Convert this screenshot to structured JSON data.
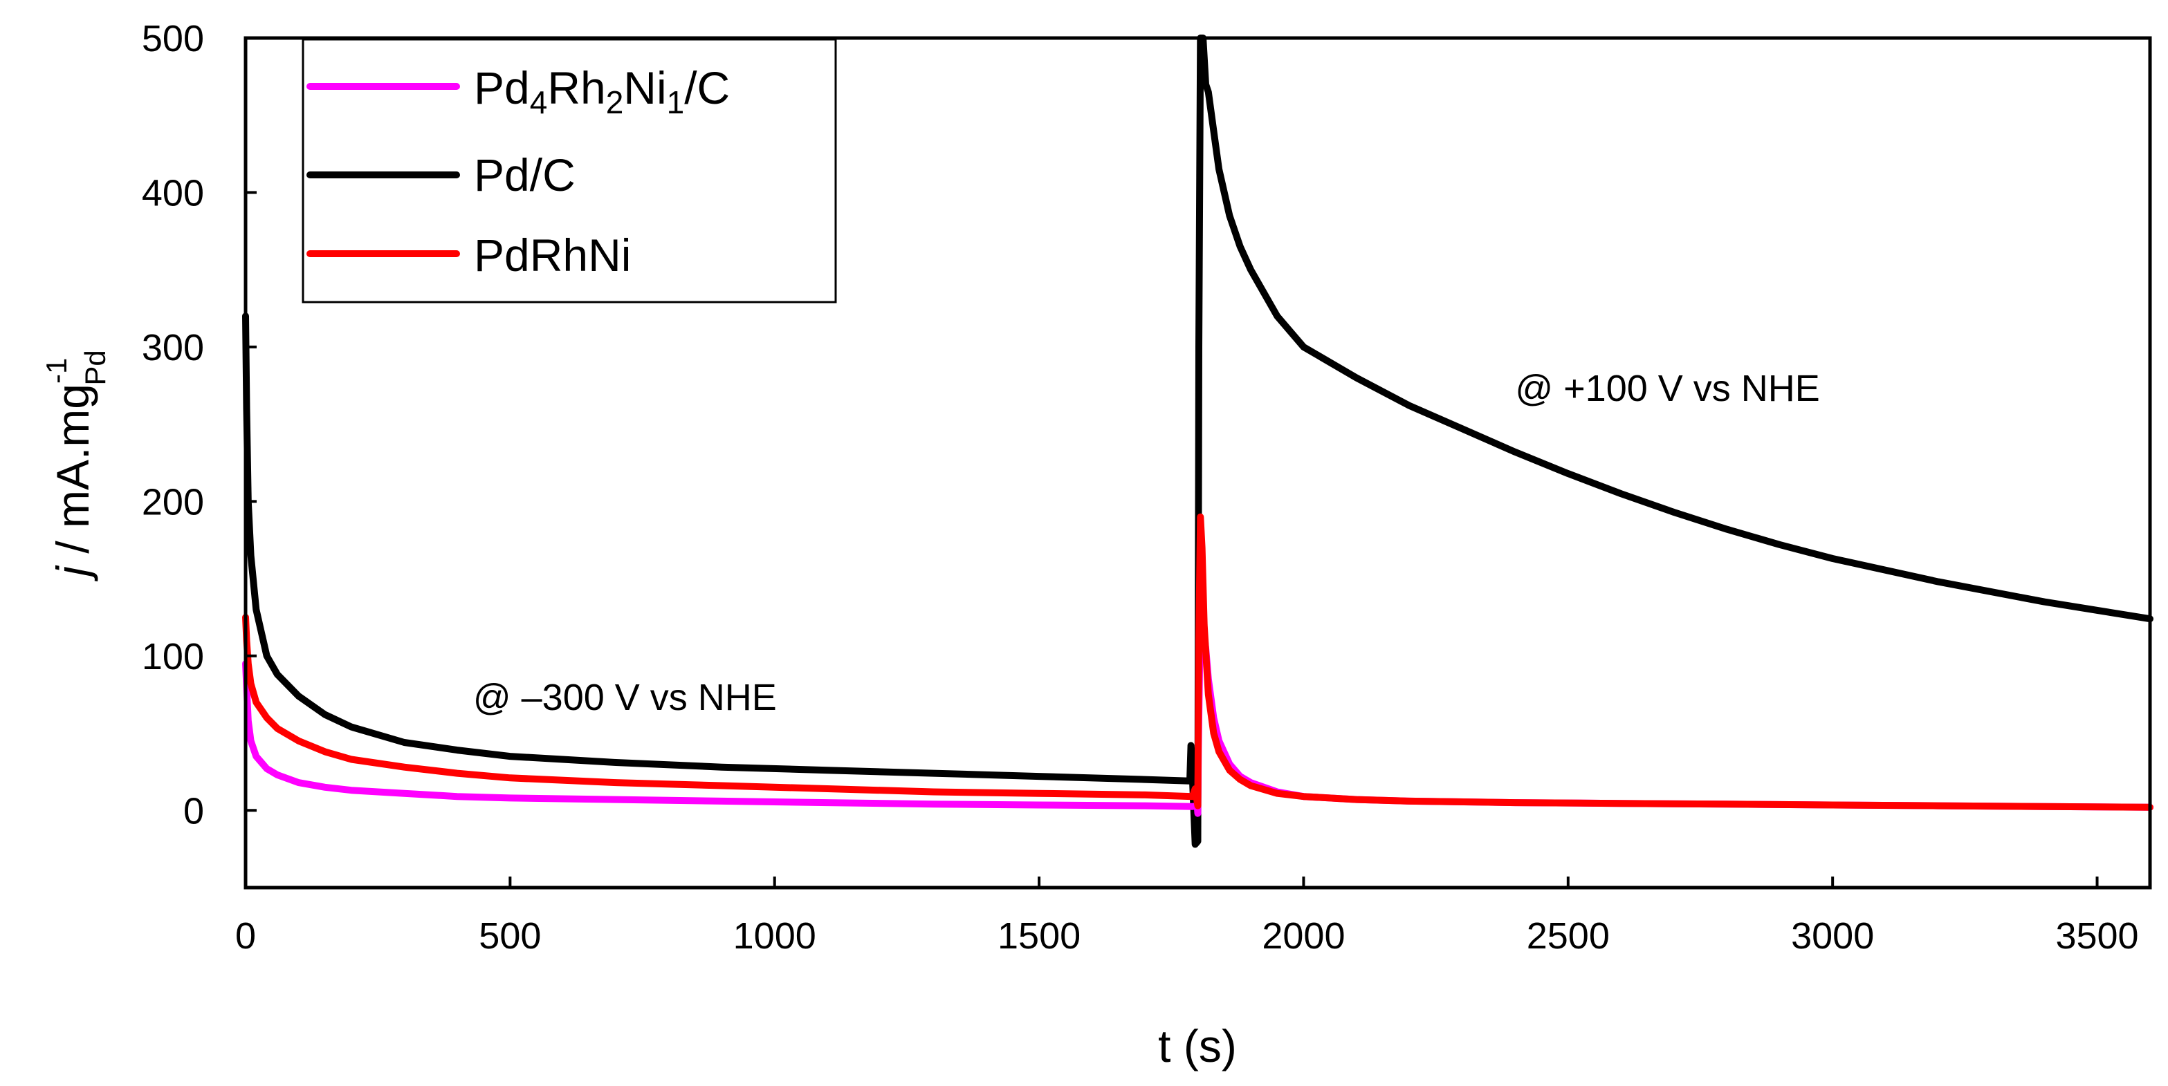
{
  "chart_data": {
    "type": "line",
    "title": "",
    "xlabel": "t (s)",
    "ylabel": {
      "italic": "j",
      "text": " / mA.mg",
      "superscript": "-1",
      "subscript": "Pd"
    },
    "xlim": [
      0,
      3600
    ],
    "ylim": [
      -50,
      500
    ],
    "xticks": [
      0,
      500,
      1000,
      1500,
      2000,
      2500,
      3000,
      3500
    ],
    "yticks": [
      0,
      100,
      200,
      300,
      400,
      500
    ],
    "grid": false,
    "legend_position": "top-left",
    "annotations": [
      {
        "text": "@ –300 V vs NHE",
        "x": 430,
        "y": 65
      },
      {
        "text": "@ +100 V vs NHE",
        "x": 2400,
        "y": 265
      }
    ],
    "series": [
      {
        "name": "Pd4Rh2Ni1/C",
        "legend": {
          "p1": "Pd",
          "s1": "4",
          "p2": "Rh",
          "s2": "2",
          "p3": "Ni",
          "s3": "1",
          "p4": "/C"
        },
        "color": "#ff00ff",
        "x": [
          0,
          2,
          5,
          10,
          20,
          40,
          60,
          100,
          150,
          200,
          300,
          400,
          500,
          700,
          900,
          1100,
          1300,
          1500,
          1700,
          1790,
          1799,
          1800,
          1801,
          1805,
          1810,
          1815,
          1820,
          1830,
          1840,
          1860,
          1880,
          1900,
          1950,
          2000,
          2100,
          2200,
          2400,
          2600,
          2800,
          3000,
          3200,
          3400,
          3600
        ],
        "y": [
          95,
          80,
          58,
          45,
          35,
          27,
          23,
          18,
          15,
          13,
          11,
          9,
          8,
          7,
          6,
          5,
          4,
          3.5,
          3,
          2.5,
          3,
          -2,
          40,
          130,
          120,
          105,
          85,
          60,
          45,
          30,
          22,
          18,
          12,
          9,
          7,
          6,
          5,
          4.5,
          4,
          3.5,
          3,
          2.5,
          2
        ]
      },
      {
        "name": "Pd/C",
        "color": "#000000",
        "x": [
          0,
          2,
          5,
          10,
          20,
          40,
          60,
          100,
          150,
          200,
          300,
          400,
          500,
          700,
          900,
          1100,
          1300,
          1500,
          1700,
          1785,
          1787,
          1790,
          1795,
          1800,
          1802,
          1805,
          1808,
          1810,
          1815,
          1820,
          1830,
          1840,
          1860,
          1880,
          1900,
          1950,
          2000,
          2100,
          2200,
          2300,
          2400,
          2500,
          2600,
          2700,
          2800,
          2900,
          3000,
          3200,
          3400,
          3600
        ],
        "y": [
          320,
          260,
          200,
          165,
          130,
          100,
          88,
          74,
          62,
          54,
          44,
          39,
          35,
          31,
          28,
          26,
          24,
          22,
          20,
          19,
          42,
          20,
          -22,
          -20,
          300,
          500,
          520,
          500,
          470,
          465,
          440,
          415,
          385,
          365,
          350,
          320,
          300,
          280,
          262,
          247,
          232,
          218,
          205,
          193,
          182,
          172,
          163,
          148,
          135,
          124
        ]
      },
      {
        "name": "PdRhNi",
        "color": "#ff0000",
        "x": [
          0,
          2,
          5,
          10,
          20,
          40,
          60,
          100,
          150,
          200,
          300,
          400,
          500,
          700,
          900,
          1100,
          1300,
          1500,
          1700,
          1790,
          1795,
          1800,
          1802,
          1805,
          1808,
          1812,
          1820,
          1830,
          1840,
          1860,
          1880,
          1900,
          1950,
          2000,
          2100,
          2200,
          2400,
          2600,
          2800,
          3000,
          3200,
          3400,
          3600
        ],
        "y": [
          125,
          110,
          95,
          82,
          70,
          60,
          53,
          45,
          38,
          33,
          28,
          24,
          21,
          18,
          16,
          14,
          12,
          11,
          10,
          9,
          14,
          3,
          110,
          190,
          170,
          120,
          75,
          50,
          38,
          26,
          20,
          16,
          11,
          9,
          7,
          6,
          5,
          4.5,
          4,
          3.5,
          3,
          2.5,
          2
        ]
      }
    ]
  }
}
